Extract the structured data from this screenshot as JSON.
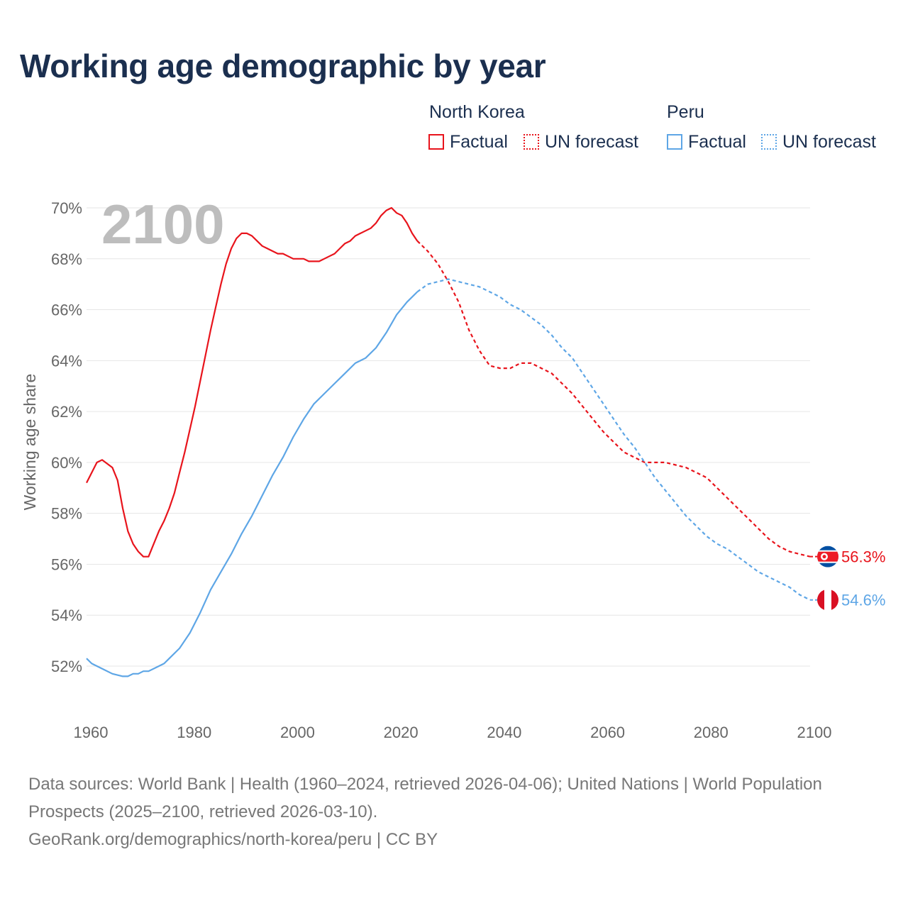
{
  "title": "Working age demographic by year",
  "legend": {
    "groups": [
      {
        "name": "North Korea",
        "factual_label": "Factual",
        "forecast_label": "UN forecast",
        "color": "#e8141c"
      },
      {
        "name": "Peru",
        "factual_label": "Factual",
        "forecast_label": "UN forecast",
        "color": "#5ea6e6"
      }
    ]
  },
  "footer": {
    "line1": "Data sources: World Bank | Health (1960–2024, retrieved 2026-04-06); United Nations | World Population Prospects (2025–2100, retrieved 2026-03-10).",
    "line2": "GeoRank.org/demographics/north-korea/peru | CC BY"
  },
  "chart_data": {
    "type": "line",
    "ylabel": "Working age share",
    "xlabel": "",
    "year_label": "2100",
    "xlim": [
      1960,
      2100
    ],
    "ylim": [
      50.5,
      70
    ],
    "x_ticks": [
      1960,
      1980,
      2000,
      2020,
      2040,
      2060,
      2080,
      2100
    ],
    "y_ticks": [
      52,
      54,
      56,
      58,
      60,
      62,
      64,
      66,
      68,
      70
    ],
    "y_tick_labels": [
      "52%",
      "54%",
      "56%",
      "58%",
      "60%",
      "62%",
      "64%",
      "66%",
      "68%",
      "70%"
    ],
    "factual_end_year": 2024,
    "series": [
      {
        "name": "North Korea",
        "color": "#e8141c",
        "end_label": "56.3%",
        "points": [
          [
            1960,
            59.2
          ],
          [
            1962,
            60.0
          ],
          [
            1963,
            60.1
          ],
          [
            1965,
            59.8
          ],
          [
            1966,
            59.3
          ],
          [
            1967,
            58.2
          ],
          [
            1968,
            57.3
          ],
          [
            1969,
            56.8
          ],
          [
            1970,
            56.5
          ],
          [
            1971,
            56.3
          ],
          [
            1972,
            56.3
          ],
          [
            1973,
            56.8
          ],
          [
            1974,
            57.3
          ],
          [
            1975,
            57.7
          ],
          [
            1976,
            58.2
          ],
          [
            1977,
            58.8
          ],
          [
            1978,
            59.6
          ],
          [
            1979,
            60.4
          ],
          [
            1980,
            61.3
          ],
          [
            1981,
            62.2
          ],
          [
            1982,
            63.2
          ],
          [
            1983,
            64.2
          ],
          [
            1984,
            65.2
          ],
          [
            1985,
            66.1
          ],
          [
            1986,
            67.0
          ],
          [
            1987,
            67.8
          ],
          [
            1988,
            68.4
          ],
          [
            1989,
            68.8
          ],
          [
            1990,
            69.0
          ],
          [
            1991,
            69.0
          ],
          [
            1992,
            68.9
          ],
          [
            1993,
            68.7
          ],
          [
            1994,
            68.5
          ],
          [
            1995,
            68.4
          ],
          [
            1996,
            68.3
          ],
          [
            1997,
            68.2
          ],
          [
            1998,
            68.2
          ],
          [
            1999,
            68.1
          ],
          [
            2000,
            68.0
          ],
          [
            2001,
            68.0
          ],
          [
            2002,
            68.0
          ],
          [
            2003,
            67.9
          ],
          [
            2004,
            67.9
          ],
          [
            2005,
            67.9
          ],
          [
            2006,
            68.0
          ],
          [
            2007,
            68.1
          ],
          [
            2008,
            68.2
          ],
          [
            2009,
            68.4
          ],
          [
            2010,
            68.6
          ],
          [
            2011,
            68.7
          ],
          [
            2012,
            68.9
          ],
          [
            2013,
            69.0
          ],
          [
            2014,
            69.1
          ],
          [
            2015,
            69.2
          ],
          [
            2016,
            69.4
          ],
          [
            2017,
            69.7
          ],
          [
            2018,
            69.9
          ],
          [
            2019,
            70.0
          ],
          [
            2020,
            69.8
          ],
          [
            2021,
            69.7
          ],
          [
            2022,
            69.4
          ],
          [
            2023,
            69.0
          ],
          [
            2024,
            68.7
          ],
          [
            2026,
            68.3
          ],
          [
            2028,
            67.8
          ],
          [
            2030,
            67.1
          ],
          [
            2032,
            66.3
          ],
          [
            2034,
            65.2
          ],
          [
            2036,
            64.4
          ],
          [
            2038,
            63.8
          ],
          [
            2040,
            63.7
          ],
          [
            2042,
            63.7
          ],
          [
            2044,
            63.9
          ],
          [
            2046,
            63.9
          ],
          [
            2048,
            63.7
          ],
          [
            2050,
            63.5
          ],
          [
            2052,
            63.1
          ],
          [
            2054,
            62.7
          ],
          [
            2056,
            62.2
          ],
          [
            2058,
            61.7
          ],
          [
            2060,
            61.2
          ],
          [
            2062,
            60.8
          ],
          [
            2064,
            60.4
          ],
          [
            2066,
            60.2
          ],
          [
            2068,
            60.0
          ],
          [
            2070,
            60.0
          ],
          [
            2072,
            60.0
          ],
          [
            2074,
            59.9
          ],
          [
            2076,
            59.8
          ],
          [
            2078,
            59.6
          ],
          [
            2080,
            59.4
          ],
          [
            2082,
            59.0
          ],
          [
            2084,
            58.6
          ],
          [
            2086,
            58.2
          ],
          [
            2088,
            57.8
          ],
          [
            2090,
            57.4
          ],
          [
            2092,
            57.0
          ],
          [
            2094,
            56.7
          ],
          [
            2096,
            56.5
          ],
          [
            2098,
            56.4
          ],
          [
            2100,
            56.3
          ]
        ]
      },
      {
        "name": "Peru",
        "color": "#5ea6e6",
        "end_label": "54.6%",
        "points": [
          [
            1960,
            52.3
          ],
          [
            1961,
            52.1
          ],
          [
            1963,
            51.9
          ],
          [
            1965,
            51.7
          ],
          [
            1967,
            51.6
          ],
          [
            1968,
            51.6
          ],
          [
            1969,
            51.7
          ],
          [
            1970,
            51.7
          ],
          [
            1971,
            51.8
          ],
          [
            1972,
            51.8
          ],
          [
            1974,
            52.0
          ],
          [
            1975,
            52.1
          ],
          [
            1976,
            52.3
          ],
          [
            1978,
            52.7
          ],
          [
            1980,
            53.3
          ],
          [
            1982,
            54.1
          ],
          [
            1984,
            55.0
          ],
          [
            1986,
            55.7
          ],
          [
            1988,
            56.4
          ],
          [
            1990,
            57.2
          ],
          [
            1992,
            57.9
          ],
          [
            1994,
            58.7
          ],
          [
            1996,
            59.5
          ],
          [
            1998,
            60.2
          ],
          [
            2000,
            61.0
          ],
          [
            2002,
            61.7
          ],
          [
            2004,
            62.3
          ],
          [
            2006,
            62.7
          ],
          [
            2008,
            63.1
          ],
          [
            2010,
            63.5
          ],
          [
            2012,
            63.9
          ],
          [
            2014,
            64.1
          ],
          [
            2016,
            64.5
          ],
          [
            2018,
            65.1
          ],
          [
            2020,
            65.8
          ],
          [
            2022,
            66.3
          ],
          [
            2024,
            66.7
          ],
          [
            2026,
            67.0
          ],
          [
            2028,
            67.1
          ],
          [
            2030,
            67.2
          ],
          [
            2032,
            67.1
          ],
          [
            2034,
            67.0
          ],
          [
            2036,
            66.9
          ],
          [
            2038,
            66.7
          ],
          [
            2040,
            66.5
          ],
          [
            2042,
            66.2
          ],
          [
            2044,
            66.0
          ],
          [
            2046,
            65.7
          ],
          [
            2048,
            65.4
          ],
          [
            2050,
            65.0
          ],
          [
            2052,
            64.5
          ],
          [
            2054,
            64.1
          ],
          [
            2056,
            63.5
          ],
          [
            2058,
            62.9
          ],
          [
            2060,
            62.3
          ],
          [
            2062,
            61.7
          ],
          [
            2064,
            61.1
          ],
          [
            2066,
            60.6
          ],
          [
            2068,
            60.0
          ],
          [
            2070,
            59.4
          ],
          [
            2072,
            58.9
          ],
          [
            2074,
            58.4
          ],
          [
            2076,
            57.9
          ],
          [
            2078,
            57.5
          ],
          [
            2080,
            57.1
          ],
          [
            2082,
            56.8
          ],
          [
            2084,
            56.6
          ],
          [
            2086,
            56.3
          ],
          [
            2088,
            56.0
          ],
          [
            2090,
            55.7
          ],
          [
            2092,
            55.5
          ],
          [
            2094,
            55.3
          ],
          [
            2096,
            55.1
          ],
          [
            2098,
            54.8
          ],
          [
            2100,
            54.6
          ]
        ]
      }
    ]
  }
}
